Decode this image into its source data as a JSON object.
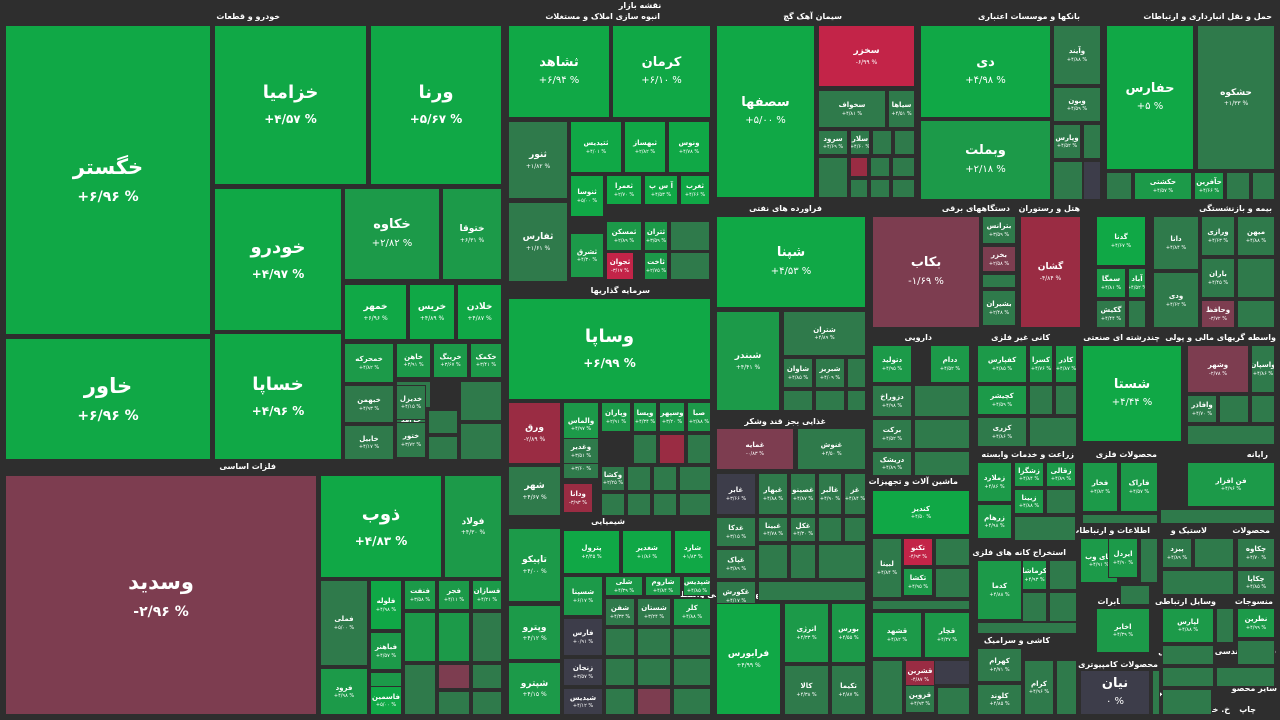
{
  "page_title": "نقشه بازار",
  "sectors": [
    {
      "id": "khodro",
      "label": "خودرو و قطعات"
    },
    {
      "id": "felezat",
      "label": "فلزات اساسی"
    },
    {
      "id": "abnieh",
      "label": "انبوه سازی املاک و مستغلات"
    },
    {
      "id": "sarmayeh",
      "label": "سرمایه گذاریها"
    },
    {
      "id": "shimiyaei",
      "label": "شیمیایی"
    },
    {
      "id": "siman",
      "label": "سیمان آهک گچ"
    },
    {
      "id": "faravardeh",
      "label": "فراورده های نفتی"
    },
    {
      "id": "ghazaei",
      "label": "غذایی بجز قند وشکر"
    },
    {
      "id": "faaliat",
      "label": "فعالیتهای کمکی به نهاد های مالی واسط"
    },
    {
      "id": "bankha",
      "label": "بانکها و موسسات اعتباری"
    },
    {
      "id": "haml",
      "label": "حمل و نقل انبارداری و ارتباطات"
    },
    {
      "id": "dastgah",
      "label": "دستگاههای برقی"
    },
    {
      "id": "hotel",
      "label": "هتل و رستوران"
    },
    {
      "id": "bimeh",
      "label": "بیمه و بازنشستگی"
    },
    {
      "id": "daroei",
      "label": "دارویی"
    },
    {
      "id": "kani",
      "label": "کانی غیر فلزی"
    },
    {
      "id": "chand",
      "label": "چندرشته ای صنعتی"
    },
    {
      "id": "vaseteh",
      "label": "واسطه گریهای مالی و پولی"
    },
    {
      "id": "mashin",
      "label": "ماشین آلات و تجهیزات"
    },
    {
      "id": "zeraat",
      "label": "زراعت و خدمات وابسته"
    },
    {
      "id": "mahsoulat_felezi",
      "label": "محصولات فلزی"
    },
    {
      "id": "rayaneh",
      "label": "رایانه"
    },
    {
      "id": "ghand",
      "label": "قند و شکر"
    },
    {
      "id": "estekhraj_kaneh",
      "label": "استخراج کانه های فلزی"
    },
    {
      "id": "ettelaat",
      "label": "اطلاعات و ارتباطات"
    },
    {
      "id": "lastik",
      "label": "لاستیک و"
    },
    {
      "id": "mahsoulat",
      "label": "محصولات"
    },
    {
      "id": "kashi",
      "label": "کاشی و سرامیک"
    },
    {
      "id": "mokhaberat",
      "label": "مخابرات"
    },
    {
      "id": "vasayel",
      "label": "وسایل ارتباطی"
    },
    {
      "id": "mansoujat",
      "label": "منسوجات"
    },
    {
      "id": "kamputeri",
      "label": "محصولات کامپیوتری"
    },
    {
      "id": "fani",
      "label": "فنی و مهندسی"
    },
    {
      "id": "zoghal",
      "label": "استخراج زغال"
    },
    {
      "id": "sayer",
      "label": "استخراج سایر"
    },
    {
      "id": "sayer_mahsoulat",
      "label": "سایر محصو"
    },
    {
      "id": "chap",
      "label": "چاپ"
    },
    {
      "id": "khorde",
      "label": "خ. خرفشا"
    }
  ],
  "tiles": [
    {
      "id": "khegostar",
      "name": "خگستر",
      "change": "% ۶/۹۶+"
    },
    {
      "id": "khazamia",
      "name": "خزامیا",
      "change": "% ۴/۵۷+"
    },
    {
      "id": "varna",
      "name": "ورنا",
      "change": "% ۵/۶۷+"
    },
    {
      "id": "khodro",
      "name": "خودرو",
      "change": "% ۴/۹۷+"
    },
    {
      "id": "khakave",
      "name": "خکاوه",
      "change": "% ۲/۸۲+"
    },
    {
      "id": "khotooga",
      "name": "ختوقا",
      "change": "% ۶/۳۱+"
    },
    {
      "id": "khavar",
      "name": "خاور",
      "change": "% ۶/۹۶+"
    },
    {
      "id": "khaspa",
      "name": "خساپا",
      "change": "% ۴/۹۶+"
    },
    {
      "id": "khamhar",
      "name": "خمهر",
      "change": "% ۶/۹۶+"
    },
    {
      "id": "khirs",
      "name": "خریس",
      "change": "% ۴/۸۹+"
    },
    {
      "id": "khaladin",
      "name": "خلادن",
      "change": "% ۴/۸۷+"
    },
    {
      "id": "khamhrekeh",
      "name": "خمحرکه",
      "change": "% ۴/۸۲+"
    },
    {
      "id": "khahan",
      "name": "خاهن",
      "change": "% ۳/۹۱+"
    },
    {
      "id": "kharing",
      "name": "خرینگ",
      "change": "% ۳/۶۷+"
    },
    {
      "id": "khakamak",
      "name": "خکمک",
      "change": "% ۳/۴۱+"
    },
    {
      "id": "khabahman",
      "name": "خبهمن",
      "change": "% ۴/۹۳+"
    },
    {
      "id": "khazar",
      "name": "خزر",
      "change": "% ۲/۸۹+"
    },
    {
      "id": "khabil",
      "name": "خابیل",
      "change": "% ۴/۱۷+"
    },
    {
      "id": "khazamad",
      "name": "خزامد",
      "change": "% ۲/۹۸+"
    },
    {
      "id": "khatoor",
      "name": "ختور",
      "change": "% ۳/۷۲+"
    },
    {
      "id": "khadizel",
      "name": "خدیزل",
      "change": "% ۴/۱۵+"
    },
    {
      "id": "vasadid",
      "name": "وسدید",
      "change": "% ۲/۹۶-"
    },
    {
      "id": "zob",
      "name": "ذوب",
      "change": "% ۴/۸۳+"
    },
    {
      "id": "foolad",
      "name": "فولاد",
      "change": "% ۴/۳۰+"
    },
    {
      "id": "faml",
      "name": "فملی",
      "change": "% ۵/۰۰+"
    },
    {
      "id": "faloole",
      "name": "فلوله",
      "change": "% ۴/۹۸+"
    },
    {
      "id": "fanafat",
      "name": "فنفت",
      "change": "% ۳/۵۸+"
    },
    {
      "id": "fajar",
      "name": "فجر",
      "change": "% ۴/۱۱+"
    },
    {
      "id": "fasazan",
      "name": "فسازان",
      "change": "% ۴/۲۱+"
    },
    {
      "id": "fabahar",
      "name": "فباهنر",
      "change": "% ۴/۵۷+"
    },
    {
      "id": "fasarb",
      "name": "فسرب",
      "change": "% ۴/۳۲+"
    },
    {
      "id": "farood",
      "name": "فرود",
      "change": "% ۴/۹۸+"
    },
    {
      "id": "falamin",
      "name": "فاسمین",
      "change": "% ۵/۰۰+"
    },
    {
      "id": "sashahed",
      "name": "ثشاهد",
      "change": "% ۶/۹۴+"
    },
    {
      "id": "kerman",
      "name": "کرمان",
      "change": "% ۶/۱۰+"
    },
    {
      "id": "sanoor",
      "name": "ثنور",
      "change": "% ۱/۸۲+"
    },
    {
      "id": "satiz",
      "name": "ثتیدیس",
      "change": "% ۴/۰۱+"
    },
    {
      "id": "sabhsaz",
      "name": "ثبهساز",
      "change": "% ۲/۸۲+"
    },
    {
      "id": "sonosa",
      "name": "ثنوسا",
      "change": "% ۵/۰۰+"
    },
    {
      "id": "sefares",
      "name": "ثفارس",
      "change": "% ۱/۶۱+"
    },
    {
      "id": "vanoos",
      "name": "ونوس",
      "change": "% ۴/۷۸+"
    },
    {
      "id": "sameran",
      "name": "ثعمرا",
      "change": "% ۲/۷۰+"
    },
    {
      "id": "asp",
      "name": "آ س پ",
      "change": "% ۴/۵۳+"
    },
    {
      "id": "sagharb",
      "name": "ثغرب",
      "change": "% ۴/۶۶+"
    },
    {
      "id": "sameskan",
      "name": "ثمسکن",
      "change": "% ۲/۸۹+"
    },
    {
      "id": "satran",
      "name": "ثتران",
      "change": "% ۳/۵۹+"
    },
    {
      "id": "sashargh",
      "name": "ثشرق",
      "change": "% ۴/۳۰+"
    },
    {
      "id": "sajvan",
      "name": "ثجوان",
      "change": "% ۳/۱۷-"
    },
    {
      "id": "saakhet",
      "name": "ثاخت",
      "change": "% ۲/۷۵+"
    },
    {
      "id": "vasapa",
      "name": "وساپا",
      "change": "% ۶/۹۹+"
    },
    {
      "id": "varegh",
      "name": "ورق",
      "change": "% ۲/۸۹-"
    },
    {
      "id": "valasa",
      "name": "والماس",
      "change": "% ۴/۹۷+"
    },
    {
      "id": "vakharazm",
      "name": "وخارزم",
      "change": "% ۳/۶۰+"
    },
    {
      "id": "vaparan",
      "name": "وپاران",
      "change": "% ۲/۹۱+"
    },
    {
      "id": "vaeesa",
      "name": "ویسا",
      "change": "% ۴/۳۴+"
    },
    {
      "id": "vasehor",
      "name": "وسپهر",
      "change": "% ۳/۲۰+"
    },
    {
      "id": "vasaba",
      "name": "صبا",
      "change": "% ۲/۸۸+"
    },
    {
      "id": "vashahr",
      "name": "شهر",
      "change": "% ۴/۶۷+"
    },
    {
      "id": "vadana",
      "name": "ودانا",
      "change": "% ۳/۹۳-"
    },
    {
      "id": "vakosha",
      "name": "وکشا",
      "change": "% ۲/۲۵+"
    },
    {
      "id": "vaghadir",
      "name": "وغدیر",
      "change": "% ۳/۵۱+"
    },
    {
      "id": "taparko",
      "name": "تاپیکو",
      "change": "% ۴/۰۰+"
    },
    {
      "id": "peterol",
      "name": "پترول",
      "change": "% ۲/۴۵+"
    },
    {
      "id": "shaghadir",
      "name": "شغدیر",
      "change": "% ۱/۸۶+"
    },
    {
      "id": "shasta_shimi",
      "name": "شارد",
      "change": "% ۱/۸۳+"
    },
    {
      "id": "shashpina",
      "name": "شسپنا",
      "change": "% ۶/۱۷+"
    },
    {
      "id": "shali",
      "name": "شلی",
      "change": "% ۴/۳۹+"
    },
    {
      "id": "sharom",
      "name": "شاروم",
      "change": "% ۴/۸۴+"
    },
    {
      "id": "shapdis",
      "name": "شپدیس",
      "change": "% ۴/۸۵+"
    },
    {
      "id": "vepetro",
      "name": "وپترو",
      "change": "% ۴/۱۲+"
    },
    {
      "id": "fares",
      "name": "فارس",
      "change": "% ۰/۹۱+"
    },
    {
      "id": "shaghan",
      "name": "شفن",
      "change": "% ۴/۳۳+"
    },
    {
      "id": "shastan",
      "name": "شستان",
      "change": "% ۳/۲۴+"
    },
    {
      "id": "kalor",
      "name": "کلر",
      "change": "% ۴/۸۸+"
    },
    {
      "id": "zanjan",
      "name": "زنجان",
      "change": "% ۳/۵۷+"
    },
    {
      "id": "shepna",
      "name": "شپترو",
      "change": "% ۴/۱۵+"
    },
    {
      "id": "shabnder2",
      "name": "شیدیس",
      "change": "% ۴/۱۲+"
    },
    {
      "id": "sasfaha",
      "name": "سصفها",
      "change": "% ۵/۰۰+"
    },
    {
      "id": "sakhazar",
      "name": "سخزر",
      "change": "% ۶/۹۹-"
    },
    {
      "id": "sakhvaf",
      "name": "سخواف",
      "change": "% ۴/۸۱+"
    },
    {
      "id": "sayaha",
      "name": "سیاها",
      "change": "% ۴/۵۱+"
    },
    {
      "id": "saroozi",
      "name": "سرود",
      "change": "% ۴/۶۹+"
    },
    {
      "id": "sefars",
      "name": "سفارس",
      "change": "% ۴/۷۷+"
    },
    {
      "id": "salar",
      "name": "سلار",
      "change": "% ۴/۶۰+"
    },
    {
      "id": "shepna_naft",
      "name": "شپنا",
      "change": "% ۴/۵۳+"
    },
    {
      "id": "shabander",
      "name": "شبندر",
      "change": "% ۴/۴۱+"
    },
    {
      "id": "shetran",
      "name": "شتران",
      "change": "% ۴/۸۹+"
    },
    {
      "id": "shaavan",
      "name": "شاوان",
      "change": "% ۴/۸۵+"
    },
    {
      "id": "shabariz",
      "name": "شبریز",
      "change": "% ۴/۰۹+"
    },
    {
      "id": "ghamaye",
      "name": "غمایه",
      "change": "% ۰/۸۳-"
    },
    {
      "id": "ghnush",
      "name": "غنوش",
      "change": "% ۴/۵۰+"
    },
    {
      "id": "ghalbar",
      "name": "غابر",
      "change": "% ۳/۶۶+"
    },
    {
      "id": "ghbehar",
      "name": "غبهار",
      "change": "% ۴/۸۸+"
    },
    {
      "id": "ghosaba",
      "name": "غصینو",
      "change": "% ۴/۸۷+"
    },
    {
      "id": "ghalat",
      "name": "غالبر",
      "change": "% ۴/۹۰+"
    },
    {
      "id": "ghaz",
      "name": "غز",
      "change": "% ۴/۸۴+"
    },
    {
      "id": "khodkala",
      "name": "غدكا",
      "change": "% ۳/۱۵+"
    },
    {
      "id": "ghabina",
      "name": "غبینا",
      "change": "% ۴/۷۸+"
    },
    {
      "id": "ghabaka",
      "name": "غکل",
      "change": "% ۴/۳۰+"
    },
    {
      "id": "ghapak",
      "name": "غپاک",
      "change": "% ۳/۸۹+"
    },
    {
      "id": "ghakoresh",
      "name": "غکورش",
      "change": "% ۴/۱۷+"
    },
    {
      "id": "faraboors",
      "name": "فرابورس",
      "change": "% ۴/۹۹+"
    },
    {
      "id": "anarzi",
      "name": "انرژی",
      "change": "% ۴/۳۳+"
    },
    {
      "id": "boors",
      "name": "بورس",
      "change": "% ۴/۵۵+"
    },
    {
      "id": "kala",
      "name": "کالا",
      "change": "% ۴/۳۸+"
    },
    {
      "id": "tekima",
      "name": "تکیما",
      "change": "% ۴/۸۷+"
    },
    {
      "id": "dey",
      "name": "دی",
      "change": "% ۴/۹۸+"
    },
    {
      "id": "vabemelat",
      "name": "وبملت",
      "change": "% ۲/۱۸+"
    },
    {
      "id": "vaband",
      "name": "وآیند",
      "change": "% ۴/۸۸+"
    },
    {
      "id": "vabon",
      "name": "وبون",
      "change": "% ۴/۵۹+"
    },
    {
      "id": "vapares",
      "name": "وپارس",
      "change": "% ۴/۵۲+"
    },
    {
      "id": "hafars",
      "name": "حفارس",
      "change": "% ۵+"
    },
    {
      "id": "hashkoh",
      "name": "حشکوه",
      "change": "% ۱/۳۳+"
    },
    {
      "id": "hakshti",
      "name": "حکشتی",
      "change": "% ۴/۵۷+"
    },
    {
      "id": "hafarin",
      "name": "حآفرین",
      "change": "% ۴/۶۶+"
    },
    {
      "id": "bekab",
      "name": "بکاب",
      "change": "% ۱/۶۹-"
    },
    {
      "id": "betranas",
      "name": "بترانس",
      "change": "% ۳/۵۹+"
    },
    {
      "id": "bekhazar",
      "name": "بخزر",
      "change": "% ۲/۵۸+"
    },
    {
      "id": "bashiran",
      "name": "بشیران",
      "change": "% ۲/۴۸+"
    },
    {
      "id": "gashan",
      "name": "گشان",
      "change": "% ۴/۸۴-"
    },
    {
      "id": "gadna",
      "name": "گدنا",
      "change": "% ۴/۶۷+"
    },
    {
      "id": "samka",
      "name": "سمگا",
      "change": "% ۴/۸۱+"
    },
    {
      "id": "abad",
      "name": "آباد",
      "change": "% ۴/۵۲+"
    },
    {
      "id": "gakish",
      "name": "گکیش",
      "change": "% ۴/۴۴+"
    },
    {
      "id": "dana",
      "name": "دانا",
      "change": "% ۴/۸۴+"
    },
    {
      "id": "vozi",
      "name": "ودی",
      "change": "% ۴/۶۲+"
    },
    {
      "id": "vazaei",
      "name": "ورازی",
      "change": "% ۴/۶۳+"
    },
    {
      "id": "mihan",
      "name": "میهن",
      "change": "% ۴/۸۸+"
    },
    {
      "id": "baran",
      "name": "باران",
      "change": "% ۴/۴۵+"
    },
    {
      "id": "vahafez",
      "name": "وحافظ",
      "change": "% ۳/۷۲-"
    },
    {
      "id": "datoliad",
      "name": "دتولید",
      "change": "% ۴/۹۵+"
    },
    {
      "id": "dadam",
      "name": "ددام",
      "change": "% ۴/۵۲+"
    },
    {
      "id": "dazoragh",
      "name": "دزوراخ",
      "change": "% ۴/۹۸+"
    },
    {
      "id": "barekat",
      "name": "برکت",
      "change": "% ۴/۵۲+"
    },
    {
      "id": "darishak",
      "name": "دریشک",
      "change": "% ۴/۸۹+"
    },
    {
      "id": "kafipars",
      "name": "کفپارس",
      "change": "% ۴/۸۵+"
    },
    {
      "id": "kasra",
      "name": "کسرا",
      "change": "% ۴/۷۶+"
    },
    {
      "id": "katar",
      "name": "کاذر",
      "change": "% ۴/۸۷+"
    },
    {
      "id": "kishiri",
      "name": "کچیشر",
      "change": "% ۴/۵۹+"
    },
    {
      "id": "kazari",
      "name": "کزری",
      "change": "% ۴/۸۶+"
    },
    {
      "id": "shasta",
      "name": "شستا",
      "change": "% ۴/۴۴+"
    },
    {
      "id": "vashahr2",
      "name": "وشهر",
      "change": "% ۲/۷۸-"
    },
    {
      "id": "vasalot",
      "name": "واسپان",
      "change": "% ۴/۸۶+"
    },
    {
      "id": "vafaz",
      "name": "وافاذر",
      "change": "% ۴/۷۰+"
    },
    {
      "id": "kandiz",
      "name": "کندیز",
      "change": "% ۴/۵۰+"
    },
    {
      "id": "tekno",
      "name": "تکنو",
      "change": "% ۴/۹۳-"
    },
    {
      "id": "labina",
      "name": "لبینا",
      "change": "% ۴/۸۴+"
    },
    {
      "id": "takasha",
      "name": "تکشا",
      "change": "% ۴/۹۵+"
    },
    {
      "id": "zamlad",
      "name": "زملارد",
      "change": "% ۴/۸۶+"
    },
    {
      "id": "zashgah",
      "name": "زشگزا",
      "change": "% ۴/۸۴+"
    },
    {
      "id": "zabina",
      "name": "زبینا",
      "change": "% ۴/۸۸+"
    },
    {
      "id": "zaghali",
      "name": "زقالی",
      "change": "% ۴/۸۹+"
    },
    {
      "id": "zarhim",
      "name": "زرهام",
      "change": "% ۴/۹۸+"
    },
    {
      "id": "faafzar",
      "name": "فن افزار",
      "change": "% ۴/۹۶+"
    },
    {
      "id": "faraz",
      "name": "فاراک",
      "change": "% ۴/۵۷+"
    },
    {
      "id": "fakhar",
      "name": "فخار",
      "change": "% ۴/۸۲+"
    },
    {
      "id": "ghashdad",
      "name": "قشهد",
      "change": "% ۴/۸۲+"
    },
    {
      "id": "ghechar",
      "name": "قچار",
      "change": "% ۴/۳۷+"
    },
    {
      "id": "ghshiran",
      "name": "قشرین",
      "change": "% ۴/۸۷-"
    },
    {
      "id": "gherwin",
      "name": "قزوین",
      "change": "% ۴/۹۳+"
    },
    {
      "id": "kagol",
      "name": "کدما",
      "change": "% ۴/۸۸+"
    },
    {
      "id": "kermaan",
      "name": "کرماشا",
      "change": "% ۴/۹۳+"
    },
    {
      "id": "kahamran",
      "name": "کهرام",
      "change": "% ۲/۷۱+"
    },
    {
      "id": "kaloud",
      "name": "کلوند",
      "change": "% ۴/۸۵+"
    },
    {
      "id": "karam",
      "name": "کرام",
      "change": "% ۴/۹۶+"
    },
    {
      "id": "hayar",
      "name": "های وب",
      "change": "% ۴/۹۱+"
    },
    {
      "id": "iradel",
      "name": "ایردل",
      "change": "% ۴/۹۰+"
    },
    {
      "id": "pakhsh",
      "name": "پتایر",
      "change": "% ۴/۷۹+"
    },
    {
      "id": "pazidar",
      "name": "پیزد",
      "change": "% ۴/۸۹+"
    },
    {
      "id": "chakaveh",
      "name": "چکاوه",
      "change": "% ۴/۷۰+"
    },
    {
      "id": "chakapa",
      "name": "چکاپا",
      "change": "% ۴/۸۵+"
    },
    {
      "id": "akhaber",
      "name": "اخابر",
      "change": "% ۴/۳۹+"
    },
    {
      "id": "layaras",
      "name": "لپارس",
      "change": "% ۴/۸۸+"
    },
    {
      "id": "nazrin",
      "name": "نطرین",
      "change": "% ۴/۹۹+"
    },
    {
      "id": "nayan",
      "name": "نیان",
      "change": "% ۰"
    }
  ]
}
